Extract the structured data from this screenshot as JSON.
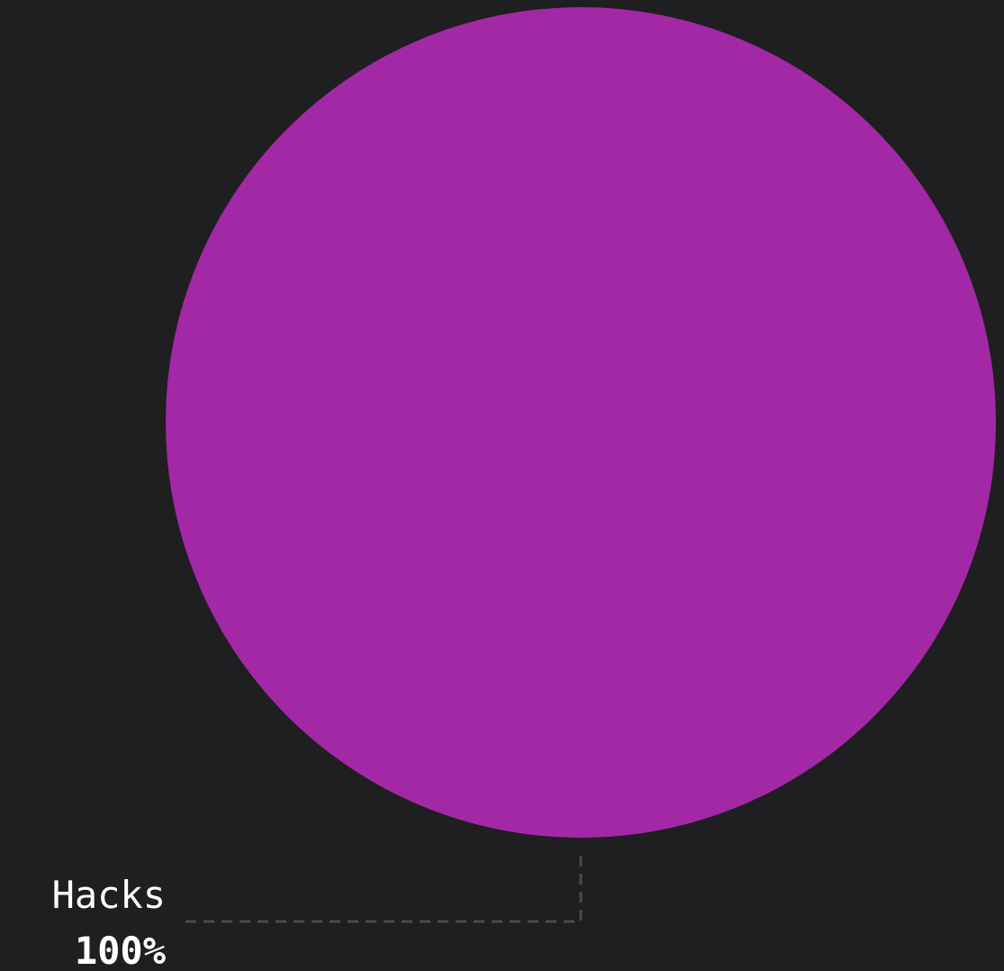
{
  "chart_data": {
    "type": "pie",
    "slices": [
      {
        "label": "Hacks",
        "value": 100,
        "percent_label": "100%",
        "color": "#a328a6"
      }
    ],
    "background": "#1f1f21",
    "leader_line_color": "#4a4a4d"
  }
}
